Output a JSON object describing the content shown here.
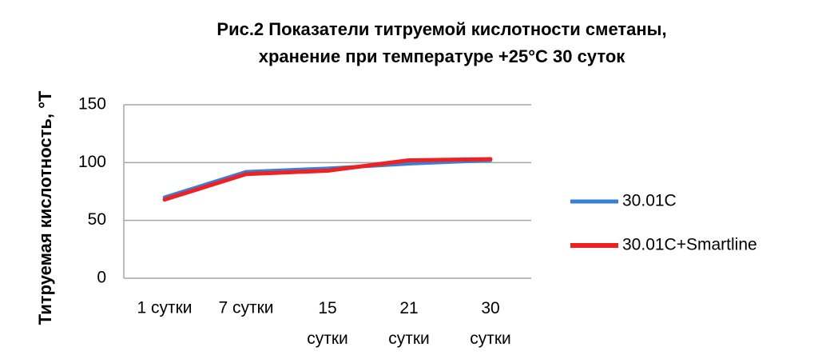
{
  "chart_data": {
    "type": "line",
    "title": [
      "Рис.2 Показатели титруемой кислотности сметаны,",
      "хранение при температуре +25°C 30 суток"
    ],
    "y_label": "Титруемая кислотность, °T",
    "categories": [
      "1 сутки",
      "7 сутки",
      "15 сутки",
      "21 сутки",
      "30 сутки"
    ],
    "series": [
      {
        "name": "30.01C",
        "color": "#3a7fd5",
        "values": [
          70,
          92,
          95,
          99,
          102
        ]
      },
      {
        "name": "30.01C+Smartline",
        "color": "#ee2222",
        "values": [
          68,
          90,
          93,
          102,
          103
        ]
      }
    ],
    "ylim": [
      0,
      150
    ],
    "yticks": [
      0,
      50,
      100,
      150
    ],
    "grid": true,
    "legend": "right"
  }
}
